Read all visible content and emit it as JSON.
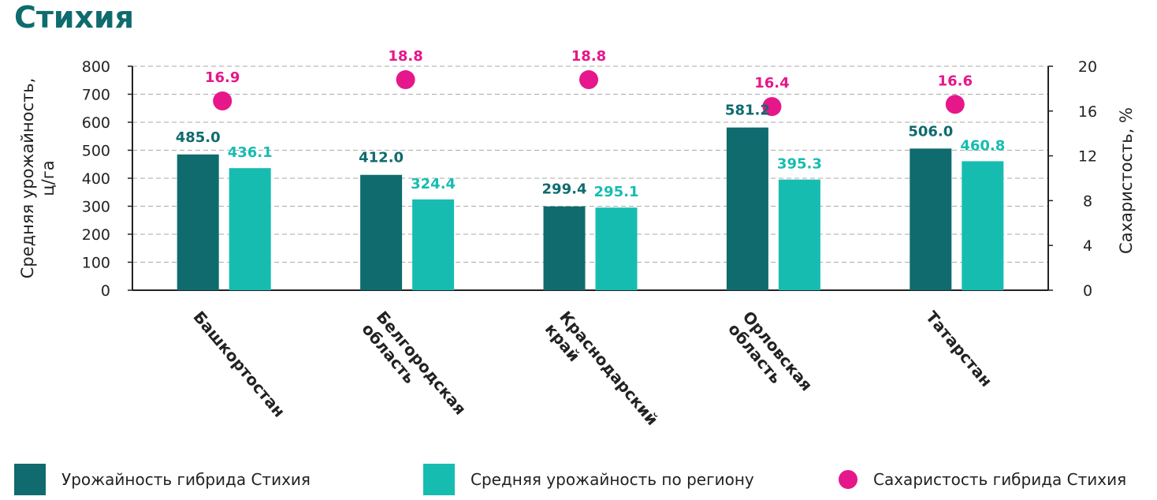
{
  "title": "Стихия",
  "colors": {
    "title": "#0f6b6e",
    "series1": "#0f6b6e",
    "series2": "#17bcb1",
    "sugar": "#e6178a",
    "grid": "#aaaaaa",
    "axis": "#222222"
  },
  "chart_data": {
    "type": "bar",
    "categories": [
      "Башкортостан",
      "Белгородская область",
      "Краснодарский край",
      "Орловская область",
      "Татарстан"
    ],
    "category_lines": [
      [
        "Башкортостан"
      ],
      [
        "Белгородская",
        "область"
      ],
      [
        "Краснодарский",
        "край"
      ],
      [
        "Орловская",
        "область"
      ],
      [
        "Татарстан"
      ]
    ],
    "series": [
      {
        "name": "Урожайность гибрида Стихия",
        "type": "bar",
        "axis": "left",
        "values": [
          485.0,
          412.0,
          299.4,
          581.2,
          506.0
        ],
        "labels": [
          "485.0",
          "412.0",
          "299.4",
          "581.2",
          "506.0"
        ]
      },
      {
        "name": "Средняя урожайность по региону",
        "type": "bar",
        "axis": "left",
        "values": [
          436.1,
          324.4,
          295.1,
          395.3,
          460.8
        ],
        "labels": [
          "436.1",
          "324.4",
          "295.1",
          "395.3",
          "460.8"
        ]
      },
      {
        "name": "Сахаристость гибрида Стихия",
        "type": "scatter",
        "axis": "right",
        "values": [
          16.9,
          18.8,
          18.8,
          16.4,
          16.6
        ],
        "labels": [
          "16.9",
          "18.8",
          "18.8",
          "16.4",
          "16.6"
        ]
      }
    ],
    "ylabel": "Средняя урожайность, ц/га",
    "ylabel_lines": [
      "Средняя урожайность,",
      "ц/га"
    ],
    "ylabel2": "Сахаристость, %",
    "ylim": [
      0,
      800
    ],
    "y2lim": [
      0,
      20
    ],
    "yticks": [
      0,
      100,
      200,
      300,
      400,
      500,
      600,
      700,
      800
    ],
    "y2ticks": [
      0,
      4,
      8,
      12,
      16,
      20
    ],
    "grid": true,
    "legend_position": "bottom"
  },
  "legend": [
    {
      "label": "Урожайность гибрида Стихия",
      "marker": "square",
      "color": "#0f6b6e"
    },
    {
      "label": "Средняя урожайность по региону",
      "marker": "square",
      "color": "#17bcb1"
    },
    {
      "label": "Сахаристость гибрида Стихия",
      "marker": "circle",
      "color": "#e6178a"
    }
  ]
}
